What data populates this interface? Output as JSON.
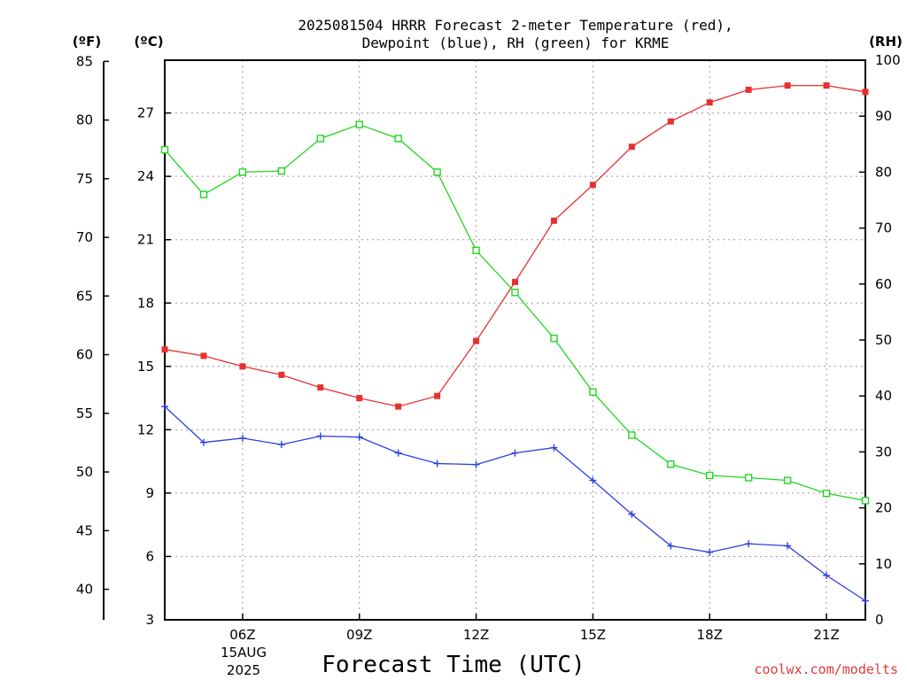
{
  "chart_data": {
    "type": "line",
    "title_line1": "2025081504 HRRR Forecast 2-meter Temperature (red),",
    "title_line2": "Dewpoint (blue), RH (green) for KRME",
    "xlabel": "Forecast Time (UTC)",
    "x_hours": [
      4,
      5,
      6,
      7,
      8,
      9,
      10,
      11,
      12,
      13,
      14,
      15,
      16,
      17,
      18,
      19,
      20,
      21,
      22
    ],
    "xlim": [
      4,
      22
    ],
    "x_ticks": [
      {
        "hour": 6,
        "label": "06Z"
      },
      {
        "hour": 9,
        "label": "09Z"
      },
      {
        "hour": 12,
        "label": "12Z"
      },
      {
        "hour": 15,
        "label": "15Z"
      },
      {
        "hour": 18,
        "label": "18Z"
      },
      {
        "hour": 21,
        "label": "21Z"
      }
    ],
    "date_label_line1": "15AUG",
    "date_label_line2": "2025",
    "axes": {
      "fahrenheit": {
        "unit": "(ºF)",
        "ticks": [
          40,
          45,
          50,
          55,
          60,
          65,
          70,
          75,
          80,
          85
        ]
      },
      "celsius": {
        "unit": "(ºC)",
        "ylim": [
          3,
          29.5
        ],
        "ticks": [
          3,
          6,
          9,
          12,
          15,
          18,
          21,
          24,
          27
        ]
      },
      "rh": {
        "unit": "(RH)",
        "ylim": [
          0,
          100
        ],
        "ticks": [
          0,
          10,
          20,
          30,
          40,
          50,
          60,
          70,
          80,
          90,
          100
        ]
      }
    },
    "grid": true,
    "series": [
      {
        "color": "#e8312f",
        "marker": "filled-square",
        "axis": "celsius",
        "values": [
          15.8,
          15.5,
          15.0,
          14.6,
          14.0,
          13.5,
          13.1,
          13.6,
          16.2,
          19.0,
          21.9,
          23.6,
          25.4,
          26.6,
          27.5,
          28.1,
          28.3,
          28.3,
          28.0
        ]
      },
      {
        "color": "#2b3fe0",
        "marker": "plus",
        "axis": "celsius",
        "values": [
          13.1,
          11.4,
          11.6,
          11.3,
          11.7,
          11.65,
          10.9,
          10.4,
          10.35,
          10.9,
          11.15,
          9.6,
          8.0,
          6.5,
          6.2,
          6.6,
          6.5,
          5.1,
          3.9
        ]
      },
      {
        "color": "#22d622",
        "marker": "open-square",
        "axis": "rh",
        "values": [
          84,
          76,
          80,
          80.2,
          86,
          88.5,
          86,
          80,
          66,
          58.5,
          50.3,
          40.7,
          33,
          27.8,
          25.8,
          25.4,
          24.9,
          22.6,
          21.3
        ]
      }
    ],
    "credit": "coolwx.com/modelts",
    "credit_color": "#e03a3a"
  }
}
